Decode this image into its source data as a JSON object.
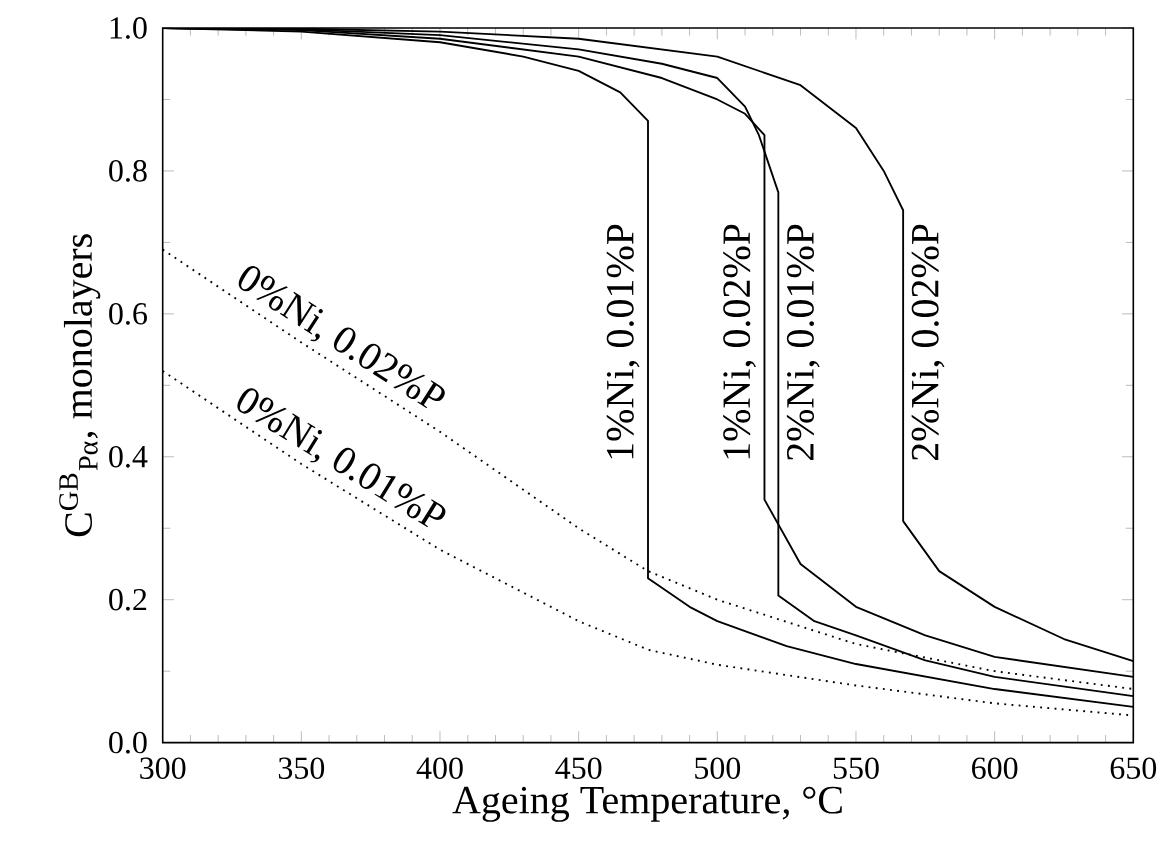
{
  "chart_data": {
    "type": "line",
    "xlabel": "Ageing Temperature, °C",
    "ylabel": "C$^{GB}$$_{Pα}$, monolayers",
    "xlim": [
      300,
      650
    ],
    "ylim": [
      0.0,
      1.0
    ],
    "xticks": [
      300,
      350,
      400,
      450,
      500,
      550,
      600,
      650
    ],
    "yticks": [
      {
        "value": 0,
        "label": "0.0"
      },
      {
        "value": 0.2,
        "label": "0.2"
      },
      {
        "value": 0.4,
        "label": "0.4"
      },
      {
        "value": 0.6,
        "label": "0.6"
      },
      {
        "value": 0.8,
        "label": "0.8"
      },
      {
        "value": 1,
        "label": "1.0"
      }
    ],
    "grid": false,
    "legend": false,
    "marker": "none",
    "series": [
      {
        "name": "1%Ni, 0.01%P",
        "color": "#000000",
        "line_style": "solid",
        "x": [
          300,
          350,
          400,
          430,
          450,
          465,
          475,
          475,
          490,
          500,
          525,
          550,
          600,
          650
        ],
        "values": [
          1.0,
          0.995,
          0.98,
          0.96,
          0.94,
          0.91,
          0.87,
          0.23,
          0.19,
          0.17,
          0.135,
          0.11,
          0.075,
          0.05
        ]
      },
      {
        "name": "1%Ni, 0.02%P",
        "color": "#000000",
        "line_style": "solid",
        "x": [
          300,
          350,
          400,
          450,
          480,
          500,
          510,
          517,
          517,
          530,
          550,
          575,
          600,
          650
        ],
        "values": [
          1.0,
          0.997,
          0.985,
          0.96,
          0.93,
          0.9,
          0.88,
          0.85,
          0.34,
          0.25,
          0.19,
          0.15,
          0.12,
          0.092
        ]
      },
      {
        "name": "2%Ni, 0.01%P",
        "color": "#000000",
        "line_style": "solid",
        "x": [
          300,
          350,
          400,
          450,
          480,
          500,
          510,
          515,
          522,
          522,
          535,
          550,
          575,
          600,
          650
        ],
        "values": [
          1.0,
          0.998,
          0.99,
          0.97,
          0.95,
          0.93,
          0.89,
          0.85,
          0.77,
          0.206,
          0.17,
          0.15,
          0.115,
          0.092,
          0.065
        ]
      },
      {
        "name": "2%Ni, 0.02%P",
        "color": "#000000",
        "line_style": "solid",
        "x": [
          300,
          350,
          400,
          450,
          500,
          530,
          550,
          560,
          567,
          567,
          580,
          600,
          625,
          650
        ],
        "values": [
          1.0,
          0.999,
          0.995,
          0.985,
          0.96,
          0.92,
          0.86,
          0.8,
          0.745,
          0.31,
          0.24,
          0.19,
          0.145,
          0.114
        ]
      },
      {
        "name": "0%Ni, 0.02%P",
        "color": "#000000",
        "line_style": "dotted",
        "x": [
          300,
          350,
          400,
          450,
          475,
          500,
          550,
          600,
          650
        ],
        "values": [
          0.69,
          0.56,
          0.435,
          0.3,
          0.24,
          0.2,
          0.138,
          0.1,
          0.075
        ]
      },
      {
        "name": "0%Ni, 0.01%P",
        "color": "#000000",
        "line_style": "dotted",
        "x": [
          300,
          350,
          400,
          450,
          475,
          500,
          550,
          600,
          650
        ],
        "values": [
          0.52,
          0.39,
          0.27,
          0.17,
          0.13,
          0.109,
          0.08,
          0.055,
          0.038
        ]
      }
    ]
  }
}
